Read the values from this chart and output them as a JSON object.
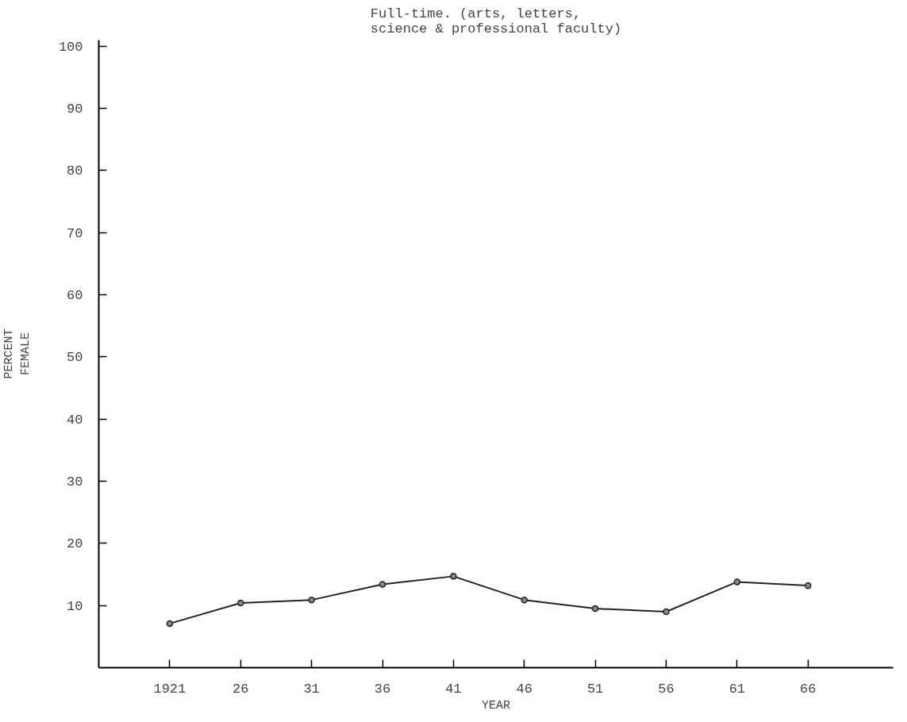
{
  "chart_data": {
    "type": "line",
    "title": "Full-time.  (arts, letters,\nscience & professional faculty)",
    "xlabel": "YEAR",
    "ylabel": "PERCENT\nFEMALE",
    "x": [
      1921,
      1926,
      1931,
      1936,
      1941,
      1946,
      1951,
      1956,
      1961,
      1966
    ],
    "series": [
      {
        "color": "#222222",
        "values": [
          7.1,
          10.4,
          10.9,
          13.4,
          14.7,
          10.9,
          9.5,
          9.0,
          13.8,
          13.2
        ]
      }
    ],
    "xlim": [
      1916,
      1972
    ],
    "xticks": [
      {
        "value": 1921,
        "label": "1921"
      },
      {
        "value": 1926,
        "label": "26"
      },
      {
        "value": 1931,
        "label": "31"
      },
      {
        "value": 1936,
        "label": "36"
      },
      {
        "value": 1941,
        "label": "41"
      },
      {
        "value": 1946,
        "label": "46"
      },
      {
        "value": 1951,
        "label": "51"
      },
      {
        "value": 1956,
        "label": "56"
      },
      {
        "value": 1961,
        "label": "61"
      },
      {
        "value": 1966,
        "label": "66"
      }
    ],
    "ylim": [
      0,
      101
    ],
    "yticks": [
      10,
      20,
      30,
      40,
      50,
      60,
      70,
      80,
      90,
      100
    ],
    "grid": false,
    "marker": "circle",
    "line_style": "solid"
  }
}
